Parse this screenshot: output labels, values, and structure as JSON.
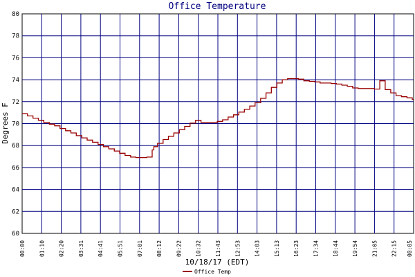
{
  "chart_data": {
    "type": "line",
    "title": "Office Temperature",
    "xlabel": "10/18/17 (EDT)",
    "ylabel": "Degrees F",
    "ylim": [
      60,
      80
    ],
    "yticks": [
      "60",
      "62",
      "64",
      "66",
      "68",
      "70",
      "72",
      "74",
      "76",
      "78",
      "80"
    ],
    "xticks": [
      "00:00",
      "01:10",
      "02:20",
      "03:31",
      "04:41",
      "05:51",
      "07:01",
      "08:12",
      "09:22",
      "10:32",
      "11:43",
      "12:53",
      "14:03",
      "15:13",
      "16:23",
      "17:34",
      "18:44",
      "19:54",
      "21:05",
      "22:15",
      "00:05"
    ],
    "grid": true,
    "legend_position": "bottom",
    "colors": {
      "line": "#990000",
      "grid": "#000080",
      "background": "#ffffff",
      "frame": "#000000"
    },
    "series": [
      {
        "name": "Office Temp",
        "x": [
          0,
          0.33,
          0.67,
          1,
          1.33,
          1.67,
          2,
          2.33,
          2.67,
          3,
          3.33,
          3.67,
          4,
          4.33,
          4.67,
          5,
          5.33,
          5.67,
          6,
          6.33,
          6.67,
          7,
          7.33,
          7.67,
          8,
          8.1,
          8.33,
          8.67,
          9,
          9.33,
          9.67,
          10,
          10.33,
          10.67,
          11,
          11.33,
          11.67,
          12,
          12.33,
          12.67,
          13,
          13.33,
          13.67,
          14,
          14.33,
          14.67,
          15,
          15.33,
          15.67,
          16,
          16.33,
          16.67,
          17,
          17.33,
          17.67,
          18,
          18.33,
          18.67,
          19,
          19.33,
          19.67,
          20,
          20.33,
          20.67,
          21,
          21.33,
          21.67,
          22,
          22.33,
          22.67,
          23,
          23.33,
          23.67,
          24,
          24.08
        ],
        "y": [
          70.9,
          70.7,
          70.5,
          70.3,
          70.1,
          69.95,
          69.8,
          69.55,
          69.35,
          69.15,
          68.9,
          68.7,
          68.5,
          68.3,
          68.1,
          67.9,
          67.7,
          67.5,
          67.3,
          67.1,
          66.95,
          66.9,
          66.9,
          66.95,
          67.6,
          67.9,
          68.2,
          68.55,
          68.85,
          69.15,
          69.45,
          69.75,
          70.05,
          70.3,
          70.1,
          70.1,
          70.1,
          70.2,
          70.35,
          70.6,
          70.8,
          71.05,
          71.3,
          71.6,
          71.9,
          72.3,
          72.8,
          73.3,
          73.7,
          74.0,
          74.1,
          74.1,
          74.05,
          73.9,
          73.85,
          73.8,
          73.7,
          73.7,
          73.65,
          73.6,
          73.5,
          73.4,
          73.25,
          73.2,
          73.2,
          73.2,
          73.15,
          73.9,
          73.1,
          72.8,
          72.55,
          72.45,
          72.35,
          72.2,
          72.2
        ]
      }
    ]
  }
}
